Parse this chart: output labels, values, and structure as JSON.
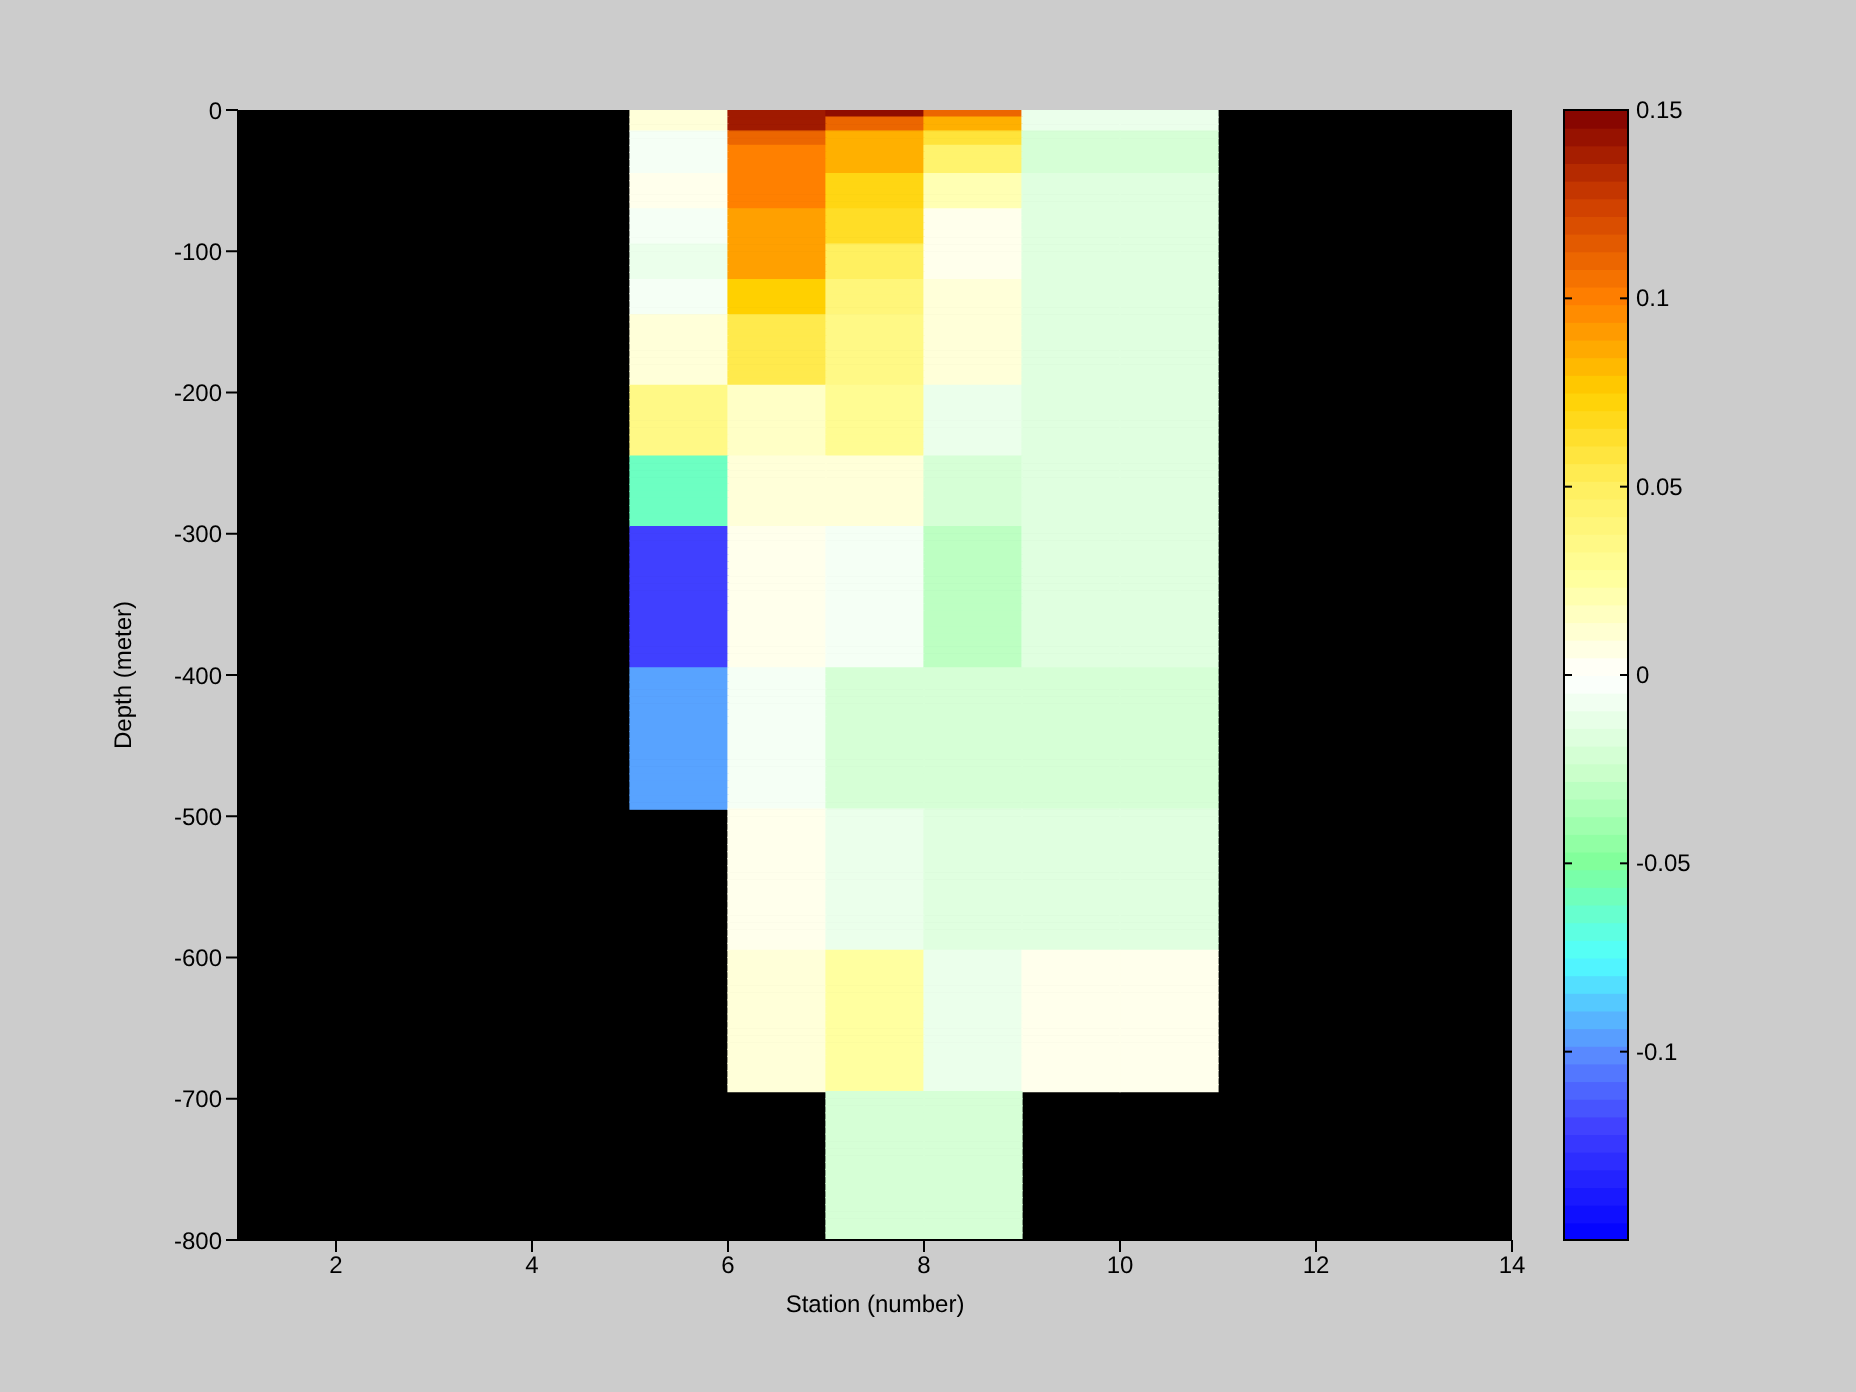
{
  "chart_data": {
    "type": "heatmap",
    "xlabel": "Station (number)",
    "ylabel": "Depth (meter)",
    "cells": [
      [
        null,
        null,
        null,
        null,
        0.01,
        0.14,
        0.145,
        0.11,
        -0.01,
        -0.01,
        null,
        null,
        null
      ],
      [
        null,
        null,
        null,
        null,
        0.01,
        0.14,
        0.11,
        0.085,
        -0.01,
        -0.01,
        null,
        null,
        null
      ],
      [
        null,
        null,
        null,
        null,
        0.01,
        0.14,
        0.11,
        0.085,
        -0.01,
        -0.01,
        null,
        null,
        null
      ],
      [
        null,
        null,
        null,
        null,
        -0.005,
        0.11,
        0.085,
        0.06,
        -0.02,
        -0.02,
        null,
        null,
        null
      ],
      [
        null,
        null,
        null,
        null,
        -0.005,
        0.11,
        0.085,
        0.06,
        -0.02,
        -0.02,
        null,
        null,
        null
      ],
      [
        null,
        null,
        null,
        null,
        -0.005,
        0.1,
        0.085,
        0.045,
        -0.02,
        -0.02,
        null,
        null,
        null
      ],
      [
        null,
        null,
        null,
        null,
        -0.005,
        0.1,
        0.085,
        0.045,
        -0.02,
        -0.02,
        null,
        null,
        null
      ],
      [
        null,
        null,
        null,
        null,
        -0.005,
        0.1,
        0.085,
        0.045,
        -0.02,
        -0.02,
        null,
        null,
        null
      ],
      [
        null,
        null,
        null,
        null,
        -0.005,
        0.1,
        0.085,
        0.045,
        -0.02,
        -0.02,
        null,
        null,
        null
      ],
      [
        null,
        null,
        null,
        null,
        0.005,
        0.1,
        0.07,
        0.02,
        -0.015,
        -0.015,
        null,
        null,
        null
      ],
      [
        null,
        null,
        null,
        null,
        0.005,
        0.1,
        0.07,
        0.02,
        -0.015,
        -0.015,
        null,
        null,
        null
      ],
      [
        null,
        null,
        null,
        null,
        0.005,
        0.1,
        0.07,
        0.02,
        -0.015,
        -0.015,
        null,
        null,
        null
      ],
      [
        null,
        null,
        null,
        null,
        0.005,
        0.1,
        0.07,
        0.02,
        -0.015,
        -0.015,
        null,
        null,
        null
      ],
      [
        null,
        null,
        null,
        null,
        0.005,
        0.1,
        0.07,
        0.02,
        -0.015,
        -0.015,
        null,
        null,
        null
      ],
      [
        null,
        null,
        null,
        null,
        -0.005,
        0.09,
        0.065,
        0.005,
        -0.015,
        -0.015,
        null,
        null,
        null
      ],
      [
        null,
        null,
        null,
        null,
        -0.005,
        0.09,
        0.065,
        0.005,
        -0.015,
        -0.015,
        null,
        null,
        null
      ],
      [
        null,
        null,
        null,
        null,
        -0.005,
        0.09,
        0.065,
        0.005,
        -0.015,
        -0.015,
        null,
        null,
        null
      ],
      [
        null,
        null,
        null,
        null,
        -0.005,
        0.09,
        0.065,
        0.005,
        -0.015,
        -0.015,
        null,
        null,
        null
      ],
      [
        null,
        null,
        null,
        null,
        -0.005,
        0.09,
        0.065,
        0.005,
        -0.015,
        -0.015,
        null,
        null,
        null
      ],
      [
        null,
        null,
        null,
        null,
        -0.01,
        0.09,
        0.05,
        0.005,
        -0.015,
        -0.015,
        null,
        null,
        null
      ],
      [
        null,
        null,
        null,
        null,
        -0.01,
        0.09,
        0.05,
        0.005,
        -0.015,
        -0.015,
        null,
        null,
        null
      ],
      [
        null,
        null,
        null,
        null,
        -0.01,
        0.09,
        0.05,
        0.005,
        -0.015,
        -0.015,
        null,
        null,
        null
      ],
      [
        null,
        null,
        null,
        null,
        -0.01,
        0.09,
        0.05,
        0.005,
        -0.015,
        -0.015,
        null,
        null,
        null
      ],
      [
        null,
        null,
        null,
        null,
        -0.01,
        0.09,
        0.05,
        0.005,
        -0.015,
        -0.015,
        null,
        null,
        null
      ],
      [
        null,
        null,
        null,
        null,
        -0.005,
        0.075,
        0.04,
        0.01,
        -0.015,
        -0.015,
        null,
        null,
        null
      ],
      [
        null,
        null,
        null,
        null,
        -0.005,
        0.075,
        0.04,
        0.01,
        -0.015,
        -0.015,
        null,
        null,
        null
      ],
      [
        null,
        null,
        null,
        null,
        -0.005,
        0.075,
        0.04,
        0.01,
        -0.015,
        -0.015,
        null,
        null,
        null
      ],
      [
        null,
        null,
        null,
        null,
        -0.005,
        0.075,
        0.04,
        0.01,
        -0.015,
        -0.015,
        null,
        null,
        null
      ],
      [
        null,
        null,
        null,
        null,
        -0.005,
        0.075,
        0.04,
        0.01,
        -0.015,
        -0.015,
        null,
        null,
        null
      ],
      [
        null,
        null,
        null,
        null,
        0.01,
        0.055,
        0.035,
        0.01,
        -0.015,
        -0.015,
        null,
        null,
        null
      ],
      [
        null,
        null,
        null,
        null,
        0.01,
        0.055,
        0.035,
        0.01,
        -0.015,
        -0.015,
        null,
        null,
        null
      ],
      [
        null,
        null,
        null,
        null,
        0.01,
        0.055,
        0.035,
        0.01,
        -0.015,
        -0.015,
        null,
        null,
        null
      ],
      [
        null,
        null,
        null,
        null,
        0.01,
        0.055,
        0.035,
        0.01,
        -0.015,
        -0.015,
        null,
        null,
        null
      ],
      [
        null,
        null,
        null,
        null,
        0.01,
        0.055,
        0.035,
        0.01,
        -0.015,
        -0.015,
        null,
        null,
        null
      ],
      [
        null,
        null,
        null,
        null,
        0.01,
        0.055,
        0.035,
        0.01,
        -0.015,
        -0.015,
        null,
        null,
        null
      ],
      [
        null,
        null,
        null,
        null,
        0.01,
        0.055,
        0.035,
        0.01,
        -0.015,
        -0.015,
        null,
        null,
        null
      ],
      [
        null,
        null,
        null,
        null,
        0.01,
        0.055,
        0.035,
        0.01,
        -0.015,
        -0.015,
        null,
        null,
        null
      ],
      [
        null,
        null,
        null,
        null,
        0.01,
        0.055,
        0.035,
        0.01,
        -0.015,
        -0.015,
        null,
        null,
        null
      ],
      [
        null,
        null,
        null,
        null,
        0.01,
        0.055,
        0.035,
        0.01,
        -0.015,
        -0.015,
        null,
        null,
        null
      ],
      [
        null,
        null,
        null,
        null,
        0.035,
        0.015,
        0.03,
        -0.01,
        -0.015,
        -0.015,
        null,
        null,
        null
      ],
      [
        null,
        null,
        null,
        null,
        0.035,
        0.015,
        0.03,
        -0.01,
        -0.015,
        -0.015,
        null,
        null,
        null
      ],
      [
        null,
        null,
        null,
        null,
        0.035,
        0.015,
        0.03,
        -0.01,
        -0.015,
        -0.015,
        null,
        null,
        null
      ],
      [
        null,
        null,
        null,
        null,
        0.035,
        0.015,
        0.03,
        -0.01,
        -0.015,
        -0.015,
        null,
        null,
        null
      ],
      [
        null,
        null,
        null,
        null,
        0.035,
        0.015,
        0.03,
        -0.01,
        -0.015,
        -0.015,
        null,
        null,
        null
      ],
      [
        null,
        null,
        null,
        null,
        0.035,
        0.015,
        0.03,
        -0.01,
        -0.015,
        -0.015,
        null,
        null,
        null
      ],
      [
        null,
        null,
        null,
        null,
        0.035,
        0.015,
        0.03,
        -0.01,
        -0.015,
        -0.015,
        null,
        null,
        null
      ],
      [
        null,
        null,
        null,
        null,
        0.035,
        0.015,
        0.03,
        -0.01,
        -0.015,
        -0.015,
        null,
        null,
        null
      ],
      [
        null,
        null,
        null,
        null,
        0.035,
        0.015,
        0.03,
        -0.01,
        -0.015,
        -0.015,
        null,
        null,
        null
      ],
      [
        null,
        null,
        null,
        null,
        0.035,
        0.015,
        0.03,
        -0.01,
        -0.015,
        -0.015,
        null,
        null,
        null
      ],
      [
        null,
        null,
        null,
        null,
        -0.06,
        0.01,
        0.01,
        -0.02,
        -0.015,
        -0.015,
        null,
        null,
        null
      ],
      [
        null,
        null,
        null,
        null,
        -0.06,
        0.01,
        0.01,
        -0.02,
        -0.015,
        -0.015,
        null,
        null,
        null
      ],
      [
        null,
        null,
        null,
        null,
        -0.06,
        0.01,
        0.01,
        -0.02,
        -0.015,
        -0.015,
        null,
        null,
        null
      ],
      [
        null,
        null,
        null,
        null,
        -0.06,
        0.01,
        0.01,
        -0.02,
        -0.015,
        -0.015,
        null,
        null,
        null
      ],
      [
        null,
        null,
        null,
        null,
        -0.06,
        0.01,
        0.01,
        -0.02,
        -0.015,
        -0.015,
        null,
        null,
        null
      ],
      [
        null,
        null,
        null,
        null,
        -0.06,
        0.01,
        0.01,
        -0.02,
        -0.015,
        -0.015,
        null,
        null,
        null
      ],
      [
        null,
        null,
        null,
        null,
        -0.06,
        0.01,
        0.01,
        -0.02,
        -0.015,
        -0.015,
        null,
        null,
        null
      ],
      [
        null,
        null,
        null,
        null,
        -0.06,
        0.01,
        0.01,
        -0.02,
        -0.015,
        -0.015,
        null,
        null,
        null
      ],
      [
        null,
        null,
        null,
        null,
        -0.06,
        0.01,
        0.01,
        -0.02,
        -0.015,
        -0.015,
        null,
        null,
        null
      ],
      [
        null,
        null,
        null,
        null,
        -0.06,
        0.01,
        0.01,
        -0.02,
        -0.015,
        -0.015,
        null,
        null,
        null
      ],
      [
        null,
        null,
        null,
        null,
        -0.12,
        0.005,
        -0.005,
        -0.03,
        -0.015,
        -0.015,
        null,
        null,
        null
      ],
      [
        null,
        null,
        null,
        null,
        -0.12,
        0.005,
        -0.005,
        -0.03,
        -0.015,
        -0.015,
        null,
        null,
        null
      ],
      [
        null,
        null,
        null,
        null,
        -0.12,
        0.005,
        -0.005,
        -0.03,
        -0.015,
        -0.015,
        null,
        null,
        null
      ],
      [
        null,
        null,
        null,
        null,
        -0.12,
        0.005,
        -0.005,
        -0.03,
        -0.015,
        -0.015,
        null,
        null,
        null
      ],
      [
        null,
        null,
        null,
        null,
        -0.12,
        0.005,
        -0.005,
        -0.03,
        -0.015,
        -0.015,
        null,
        null,
        null
      ],
      [
        null,
        null,
        null,
        null,
        -0.12,
        0.005,
        -0.005,
        -0.03,
        -0.015,
        -0.015,
        null,
        null,
        null
      ],
      [
        null,
        null,
        null,
        null,
        -0.12,
        0.005,
        -0.005,
        -0.03,
        -0.015,
        -0.015,
        null,
        null,
        null
      ],
      [
        null,
        null,
        null,
        null,
        -0.12,
        0.005,
        -0.005,
        -0.03,
        -0.015,
        -0.015,
        null,
        null,
        null
      ],
      [
        null,
        null,
        null,
        null,
        -0.12,
        0.005,
        -0.005,
        -0.03,
        -0.015,
        -0.015,
        null,
        null,
        null
      ],
      [
        null,
        null,
        null,
        null,
        -0.12,
        0.005,
        -0.005,
        -0.03,
        -0.015,
        -0.015,
        null,
        null,
        null
      ],
      [
        null,
        null,
        null,
        null,
        -0.12,
        0.005,
        -0.005,
        -0.03,
        -0.015,
        -0.015,
        null,
        null,
        null
      ],
      [
        null,
        null,
        null,
        null,
        -0.12,
        0.005,
        -0.005,
        -0.03,
        -0.015,
        -0.015,
        null,
        null,
        null
      ],
      [
        null,
        null,
        null,
        null,
        -0.12,
        0.005,
        -0.005,
        -0.03,
        -0.015,
        -0.015,
        null,
        null,
        null
      ],
      [
        null,
        null,
        null,
        null,
        -0.12,
        0.005,
        -0.005,
        -0.03,
        -0.015,
        -0.015,
        null,
        null,
        null
      ],
      [
        null,
        null,
        null,
        null,
        -0.12,
        0.005,
        -0.005,
        -0.03,
        -0.015,
        -0.015,
        null,
        null,
        null
      ],
      [
        null,
        null,
        null,
        null,
        -0.12,
        0.005,
        -0.005,
        -0.03,
        -0.015,
        -0.015,
        null,
        null,
        null
      ],
      [
        null,
        null,
        null,
        null,
        -0.12,
        0.005,
        -0.005,
        -0.03,
        -0.015,
        -0.015,
        null,
        null,
        null
      ],
      [
        null,
        null,
        null,
        null,
        -0.12,
        0.005,
        -0.005,
        -0.03,
        -0.015,
        -0.015,
        null,
        null,
        null
      ],
      [
        null,
        null,
        null,
        null,
        -0.12,
        0.005,
        -0.005,
        -0.03,
        -0.015,
        -0.015,
        null,
        null,
        null
      ],
      [
        null,
        null,
        null,
        null,
        -0.12,
        0.005,
        -0.005,
        -0.03,
        -0.015,
        -0.015,
        null,
        null,
        null
      ],
      [
        null,
        null,
        null,
        null,
        -0.095,
        -0.005,
        -0.02,
        -0.02,
        -0.02,
        -0.02,
        null,
        null,
        null
      ],
      [
        null,
        null,
        null,
        null,
        -0.095,
        -0.005,
        -0.02,
        -0.02,
        -0.02,
        -0.02,
        null,
        null,
        null
      ],
      [
        null,
        null,
        null,
        null,
        -0.095,
        -0.005,
        -0.02,
        -0.02,
        -0.02,
        -0.02,
        null,
        null,
        null
      ],
      [
        null,
        null,
        null,
        null,
        -0.095,
        -0.005,
        -0.02,
        -0.02,
        -0.02,
        -0.02,
        null,
        null,
        null
      ],
      [
        null,
        null,
        null,
        null,
        -0.095,
        -0.005,
        -0.02,
        -0.02,
        -0.02,
        -0.02,
        null,
        null,
        null
      ],
      [
        null,
        null,
        null,
        null,
        -0.095,
        -0.005,
        -0.02,
        -0.02,
        -0.02,
        -0.02,
        null,
        null,
        null
      ],
      [
        null,
        null,
        null,
        null,
        -0.095,
        -0.005,
        -0.02,
        -0.02,
        -0.02,
        -0.02,
        null,
        null,
        null
      ],
      [
        null,
        null,
        null,
        null,
        -0.095,
        -0.005,
        -0.02,
        -0.02,
        -0.02,
        -0.02,
        null,
        null,
        null
      ],
      [
        null,
        null,
        null,
        null,
        -0.095,
        -0.005,
        -0.02,
        -0.02,
        -0.02,
        -0.02,
        null,
        null,
        null
      ],
      [
        null,
        null,
        null,
        null,
        -0.095,
        -0.005,
        -0.02,
        -0.02,
        -0.02,
        -0.02,
        null,
        null,
        null
      ],
      [
        null,
        null,
        null,
        null,
        -0.095,
        -0.005,
        -0.02,
        -0.02,
        -0.02,
        -0.02,
        null,
        null,
        null
      ],
      [
        null,
        null,
        null,
        null,
        -0.095,
        -0.005,
        -0.02,
        -0.02,
        -0.02,
        -0.02,
        null,
        null,
        null
      ],
      [
        null,
        null,
        null,
        null,
        -0.095,
        -0.005,
        -0.02,
        -0.02,
        -0.02,
        -0.02,
        null,
        null,
        null
      ],
      [
        null,
        null,
        null,
        null,
        -0.095,
        -0.005,
        -0.02,
        -0.02,
        -0.02,
        -0.02,
        null,
        null,
        null
      ],
      [
        null,
        null,
        null,
        null,
        -0.095,
        -0.005,
        -0.02,
        -0.02,
        -0.02,
        -0.02,
        null,
        null,
        null
      ],
      [
        null,
        null,
        null,
        null,
        -0.095,
        -0.005,
        -0.02,
        -0.02,
        -0.02,
        -0.02,
        null,
        null,
        null
      ],
      [
        null,
        null,
        null,
        null,
        -0.095,
        -0.005,
        -0.02,
        -0.02,
        -0.02,
        -0.02,
        null,
        null,
        null
      ],
      [
        null,
        null,
        null,
        null,
        -0.095,
        -0.005,
        -0.02,
        -0.02,
        -0.02,
        -0.02,
        null,
        null,
        null
      ],
      [
        null,
        null,
        null,
        null,
        -0.095,
        -0.005,
        -0.02,
        -0.02,
        -0.02,
        -0.02,
        null,
        null,
        null
      ],
      [
        null,
        null,
        null,
        null,
        -0.095,
        -0.005,
        -0.02,
        -0.02,
        -0.02,
        -0.02,
        null,
        null,
        null
      ],
      [
        null,
        null,
        null,
        null,
        null,
        0.005,
        -0.01,
        -0.015,
        -0.015,
        -0.015,
        null,
        null,
        null
      ],
      [
        null,
        null,
        null,
        null,
        null,
        0.005,
        -0.01,
        -0.015,
        -0.015,
        -0.015,
        null,
        null,
        null
      ],
      [
        null,
        null,
        null,
        null,
        null,
        0.005,
        -0.01,
        -0.015,
        -0.015,
        -0.015,
        null,
        null,
        null
      ],
      [
        null,
        null,
        null,
        null,
        null,
        0.005,
        -0.01,
        -0.015,
        -0.015,
        -0.015,
        null,
        null,
        null
      ],
      [
        null,
        null,
        null,
        null,
        null,
        0.005,
        -0.01,
        -0.015,
        -0.015,
        -0.015,
        null,
        null,
        null
      ],
      [
        null,
        null,
        null,
        null,
        null,
        0.005,
        -0.01,
        -0.015,
        -0.015,
        -0.015,
        null,
        null,
        null
      ],
      [
        null,
        null,
        null,
        null,
        null,
        0.005,
        -0.01,
        -0.015,
        -0.015,
        -0.015,
        null,
        null,
        null
      ],
      [
        null,
        null,
        null,
        null,
        null,
        0.005,
        -0.01,
        -0.015,
        -0.015,
        -0.015,
        null,
        null,
        null
      ],
      [
        null,
        null,
        null,
        null,
        null,
        0.005,
        -0.01,
        -0.015,
        -0.015,
        -0.015,
        null,
        null,
        null
      ],
      [
        null,
        null,
        null,
        null,
        null,
        0.005,
        -0.01,
        -0.015,
        -0.015,
        -0.015,
        null,
        null,
        null
      ],
      [
        null,
        null,
        null,
        null,
        null,
        0.005,
        -0.01,
        -0.015,
        -0.015,
        -0.015,
        null,
        null,
        null
      ],
      [
        null,
        null,
        null,
        null,
        null,
        0.005,
        -0.01,
        -0.015,
        -0.015,
        -0.015,
        null,
        null,
        null
      ],
      [
        null,
        null,
        null,
        null,
        null,
        0.005,
        -0.01,
        -0.015,
        -0.015,
        -0.015,
        null,
        null,
        null
      ],
      [
        null,
        null,
        null,
        null,
        null,
        0.005,
        -0.01,
        -0.015,
        -0.015,
        -0.015,
        null,
        null,
        null
      ],
      [
        null,
        null,
        null,
        null,
        null,
        0.005,
        -0.01,
        -0.015,
        -0.015,
        -0.015,
        null,
        null,
        null
      ],
      [
        null,
        null,
        null,
        null,
        null,
        0.005,
        -0.01,
        -0.015,
        -0.015,
        -0.015,
        null,
        null,
        null
      ],
      [
        null,
        null,
        null,
        null,
        null,
        0.005,
        -0.01,
        -0.015,
        -0.015,
        -0.015,
        null,
        null,
        null
      ],
      [
        null,
        null,
        null,
        null,
        null,
        0.005,
        -0.01,
        -0.015,
        -0.015,
        -0.015,
        null,
        null,
        null
      ],
      [
        null,
        null,
        null,
        null,
        null,
        0.005,
        -0.01,
        -0.015,
        -0.015,
        -0.015,
        null,
        null,
        null
      ],
      [
        null,
        null,
        null,
        null,
        null,
        0.005,
        -0.01,
        -0.015,
        -0.015,
        -0.015,
        null,
        null,
        null
      ],
      [
        null,
        null,
        null,
        null,
        null,
        0.01,
        0.025,
        -0.01,
        0.005,
        0.005,
        null,
        null,
        null
      ],
      [
        null,
        null,
        null,
        null,
        null,
        0.01,
        0.025,
        -0.01,
        0.005,
        0.005,
        null,
        null,
        null
      ],
      [
        null,
        null,
        null,
        null,
        null,
        0.01,
        0.025,
        -0.01,
        0.005,
        0.005,
        null,
        null,
        null
      ],
      [
        null,
        null,
        null,
        null,
        null,
        0.01,
        0.025,
        -0.01,
        0.005,
        0.005,
        null,
        null,
        null
      ],
      [
        null,
        null,
        null,
        null,
        null,
        0.01,
        0.025,
        -0.01,
        0.005,
        0.005,
        null,
        null,
        null
      ],
      [
        null,
        null,
        null,
        null,
        null,
        0.01,
        0.025,
        -0.01,
        0.005,
        0.005,
        null,
        null,
        null
      ],
      [
        null,
        null,
        null,
        null,
        null,
        0.01,
        0.025,
        -0.01,
        0.005,
        0.005,
        null,
        null,
        null
      ],
      [
        null,
        null,
        null,
        null,
        null,
        0.01,
        0.025,
        -0.01,
        0.005,
        0.005,
        null,
        null,
        null
      ],
      [
        null,
        null,
        null,
        null,
        null,
        0.01,
        0.025,
        -0.01,
        0.005,
        0.005,
        null,
        null,
        null
      ],
      [
        null,
        null,
        null,
        null,
        null,
        0.01,
        0.025,
        -0.01,
        0.005,
        0.005,
        null,
        null,
        null
      ],
      [
        null,
        null,
        null,
        null,
        null,
        0.01,
        0.025,
        -0.01,
        0.005,
        0.005,
        null,
        null,
        null
      ],
      [
        null,
        null,
        null,
        null,
        null,
        0.01,
        0.025,
        -0.01,
        0.005,
        0.005,
        null,
        null,
        null
      ],
      [
        null,
        null,
        null,
        null,
        null,
        0.01,
        0.025,
        -0.01,
        0.005,
        0.005,
        null,
        null,
        null
      ],
      [
        null,
        null,
        null,
        null,
        null,
        0.01,
        0.025,
        -0.01,
        0.005,
        0.005,
        null,
        null,
        null
      ],
      [
        null,
        null,
        null,
        null,
        null,
        0.01,
        0.025,
        -0.01,
        0.005,
        0.005,
        null,
        null,
        null
      ],
      [
        null,
        null,
        null,
        null,
        null,
        0.01,
        0.025,
        -0.01,
        0.005,
        0.005,
        null,
        null,
        null
      ],
      [
        null,
        null,
        null,
        null,
        null,
        0.01,
        0.025,
        -0.01,
        0.005,
        0.005,
        null,
        null,
        null
      ],
      [
        null,
        null,
        null,
        null,
        null,
        0.01,
        0.025,
        -0.01,
        0.005,
        0.005,
        null,
        null,
        null
      ],
      [
        null,
        null,
        null,
        null,
        null,
        0.01,
        0.025,
        -0.01,
        0.005,
        0.005,
        null,
        null,
        null
      ],
      [
        null,
        null,
        null,
        null,
        null,
        0.01,
        0.025,
        -0.01,
        0.005,
        0.005,
        null,
        null,
        null
      ],
      [
        null,
        null,
        null,
        null,
        null,
        null,
        -0.02,
        -0.02,
        null,
        null,
        null,
        null,
        null
      ],
      [
        null,
        null,
        null,
        null,
        null,
        null,
        -0.02,
        -0.02,
        null,
        null,
        null,
        null,
        null
      ],
      [
        null,
        null,
        null,
        null,
        null,
        null,
        -0.02,
        -0.02,
        null,
        null,
        null,
        null,
        null
      ],
      [
        null,
        null,
        null,
        null,
        null,
        null,
        -0.02,
        -0.02,
        null,
        null,
        null,
        null,
        null
      ],
      [
        null,
        null,
        null,
        null,
        null,
        null,
        -0.02,
        -0.02,
        null,
        null,
        null,
        null,
        null
      ],
      [
        null,
        null,
        null,
        null,
        null,
        null,
        -0.02,
        -0.02,
        null,
        null,
        null,
        null,
        null
      ],
      [
        null,
        null,
        null,
        null,
        null,
        null,
        -0.02,
        -0.02,
        null,
        null,
        null,
        null,
        null
      ],
      [
        null,
        null,
        null,
        null,
        null,
        null,
        -0.02,
        -0.02,
        null,
        null,
        null,
        null,
        null
      ],
      [
        null,
        null,
        null,
        null,
        null,
        null,
        -0.02,
        -0.02,
        null,
        null,
        null,
        null,
        null
      ],
      [
        null,
        null,
        null,
        null,
        null,
        null,
        -0.02,
        -0.02,
        null,
        null,
        null,
        null,
        null
      ],
      [
        null,
        null,
        null,
        null,
        null,
        null,
        -0.02,
        -0.02,
        null,
        null,
        null,
        null,
        null
      ],
      [
        null,
        null,
        null,
        null,
        null,
        null,
        -0.02,
        -0.02,
        null,
        null,
        null,
        null,
        null
      ],
      [
        null,
        null,
        null,
        null,
        null,
        null,
        -0.02,
        -0.02,
        null,
        null,
        null,
        null,
        null
      ],
      [
        null,
        null,
        null,
        null,
        null,
        null,
        -0.02,
        -0.02,
        null,
        null,
        null,
        null,
        null
      ],
      [
        null,
        null,
        null,
        null,
        null,
        null,
        -0.02,
        -0.02,
        null,
        null,
        null,
        null,
        null
      ],
      [
        null,
        null,
        null,
        null,
        null,
        null,
        -0.02,
        -0.02,
        null,
        null,
        null,
        null,
        null
      ],
      [
        null,
        null,
        null,
        null,
        null,
        null,
        -0.02,
        -0.02,
        null,
        null,
        null,
        null,
        null
      ],
      [
        null,
        null,
        null,
        null,
        null,
        null,
        -0.02,
        -0.02,
        null,
        null,
        null,
        null,
        null
      ],
      [
        null,
        null,
        null,
        null,
        null,
        null,
        -0.02,
        -0.02,
        null,
        null,
        null,
        null,
        null
      ],
      [
        null,
        null,
        null,
        null,
        null,
        null,
        -0.02,
        -0.02,
        null,
        null,
        null,
        null,
        null
      ],
      [
        null,
        null,
        null,
        null,
        null,
        null,
        -0.02,
        -0.02,
        null,
        null,
        null,
        null,
        null
      ]
    ],
    "xlim": [
      1,
      14
    ],
    "xticks": [
      2,
      4,
      6,
      8,
      10,
      12,
      14
    ],
    "ylim": [
      -800,
      0
    ],
    "yticks": [
      -800,
      -700,
      -600,
      -500,
      -400,
      -300,
      -200,
      -100,
      0
    ],
    "clim": [
      -0.15,
      0.15
    ],
    "cticks": [
      -0.1,
      -0.05,
      0,
      0.05,
      0.1,
      0.15
    ]
  }
}
